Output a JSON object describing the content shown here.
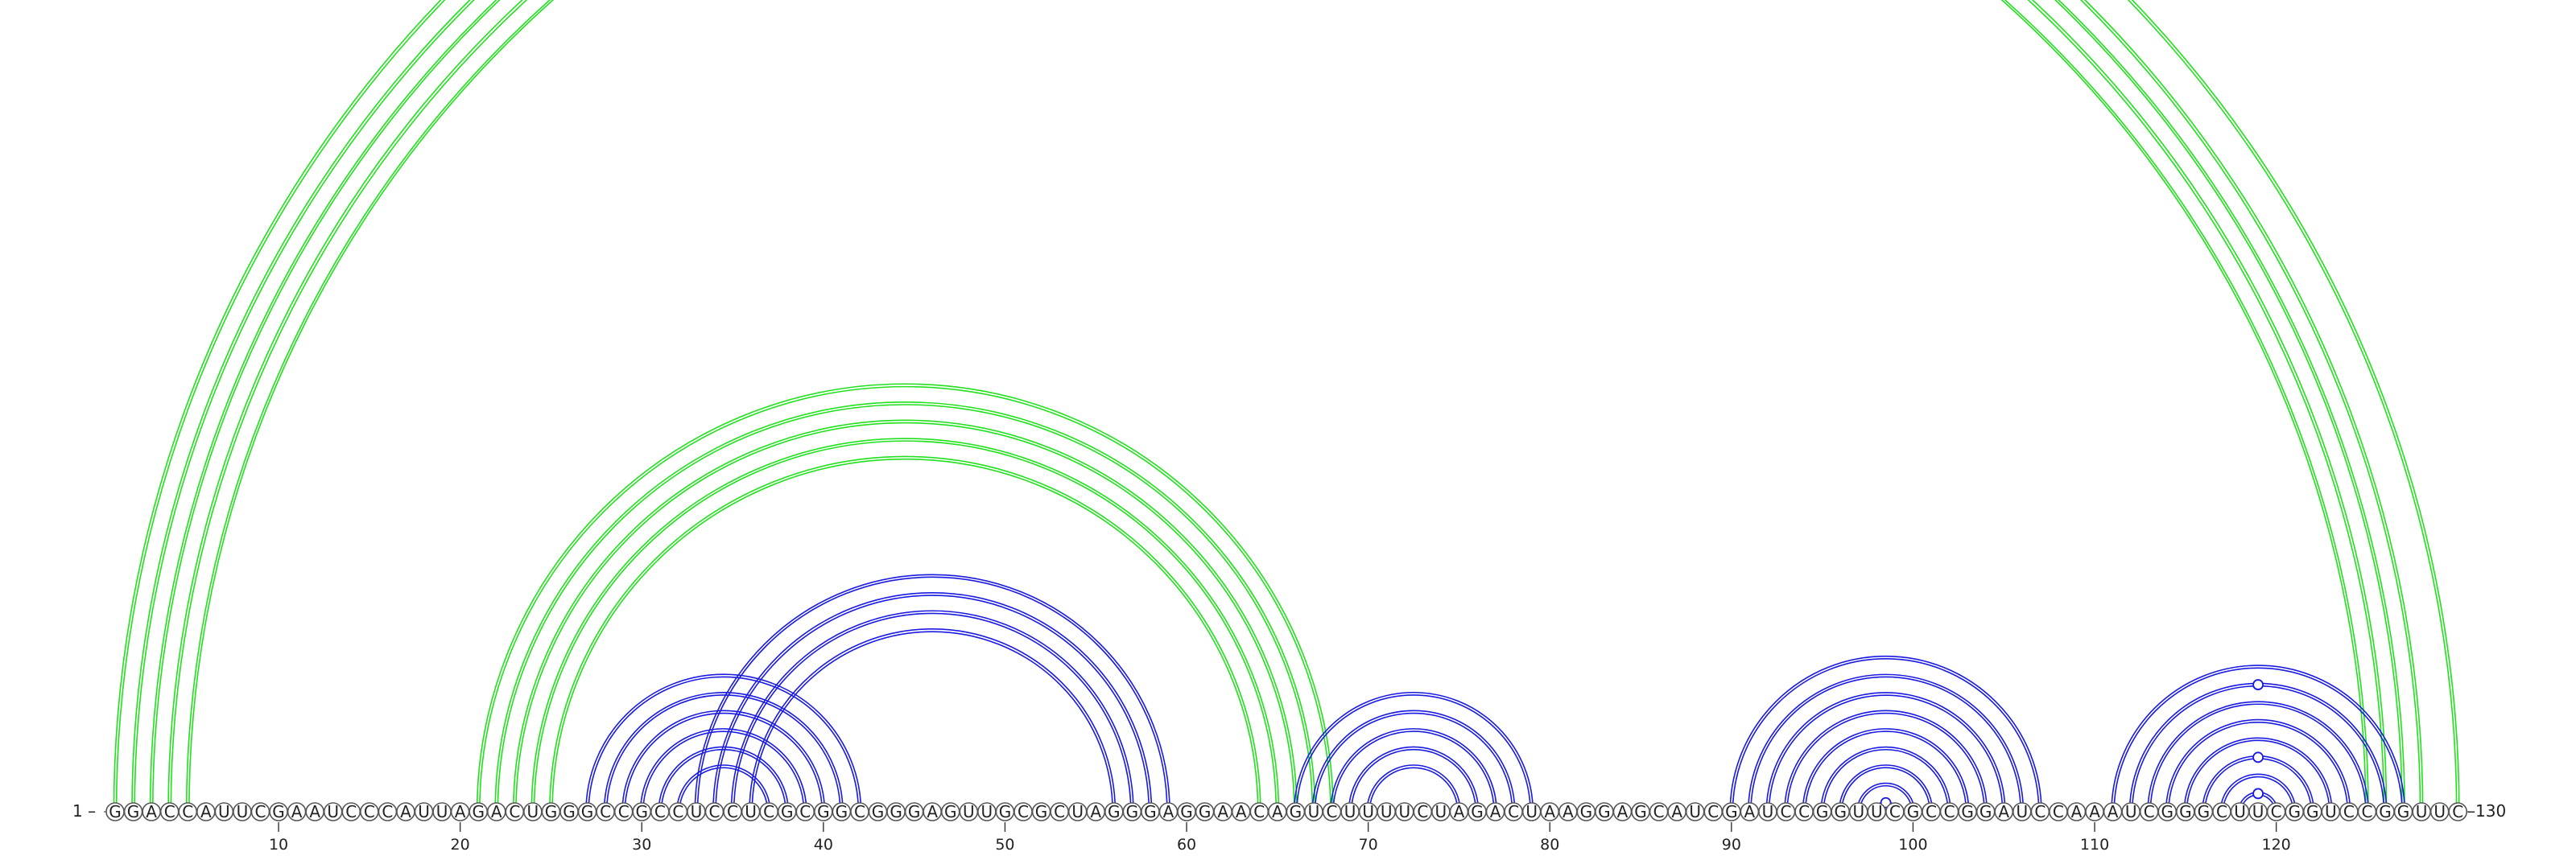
{
  "sequence": "GGACCAUUCGAAUCCCAUUAGACUGGGCCGCCUCCUCGCGGCGGGAGUUGCGCUAGGGAGGAACAGUCUUUUCUAGACUAAGGAGCAUCGAUCCGGUUCGCCGGAUCCAAAUCGGGCUUCGGUCCGGUUC",
  "start_label": "1 –",
  "end_label": "–130",
  "ticks": [
    "10",
    "20",
    "30",
    "40",
    "50",
    "60",
    "70",
    "80",
    "90",
    "100",
    "110",
    "120"
  ],
  "colors": {
    "outer_arcs": "#22e01e",
    "inner_arcs": "#1a1ae0",
    "node_outline": "#555555"
  },
  "pairs": {
    "green": [
      [
        1,
        130
      ],
      [
        2,
        128
      ],
      [
        3,
        127
      ],
      [
        4,
        126
      ],
      [
        5,
        125
      ],
      [
        21,
        68
      ],
      [
        22,
        67
      ],
      [
        23,
        66
      ],
      [
        24,
        65
      ],
      [
        25,
        64
      ]
    ],
    "blue": [
      [
        27,
        42
      ],
      [
        28,
        41
      ],
      [
        29,
        40
      ],
      [
        30,
        39
      ],
      [
        31,
        38
      ],
      [
        32,
        37
      ],
      [
        33,
        59
      ],
      [
        34,
        58
      ],
      [
        35,
        57
      ],
      [
        36,
        56
      ],
      [
        66,
        79
      ],
      [
        67,
        78
      ],
      [
        68,
        77
      ],
      [
        69,
        76
      ],
      [
        70,
        75
      ],
      [
        90,
        107
      ],
      [
        91,
        106
      ],
      [
        92,
        105
      ],
      [
        93,
        104
      ],
      [
        94,
        103
      ],
      [
        95,
        102
      ],
      [
        96,
        101
      ],
      [
        97,
        100
      ],
      [
        98,
        99
      ],
      [
        111,
        127
      ],
      [
        112,
        126
      ],
      [
        113,
        125
      ],
      [
        114,
        124
      ],
      [
        115,
        123
      ],
      [
        116,
        122
      ],
      [
        117,
        121
      ],
      [
        118,
        120
      ]
    ]
  }
}
